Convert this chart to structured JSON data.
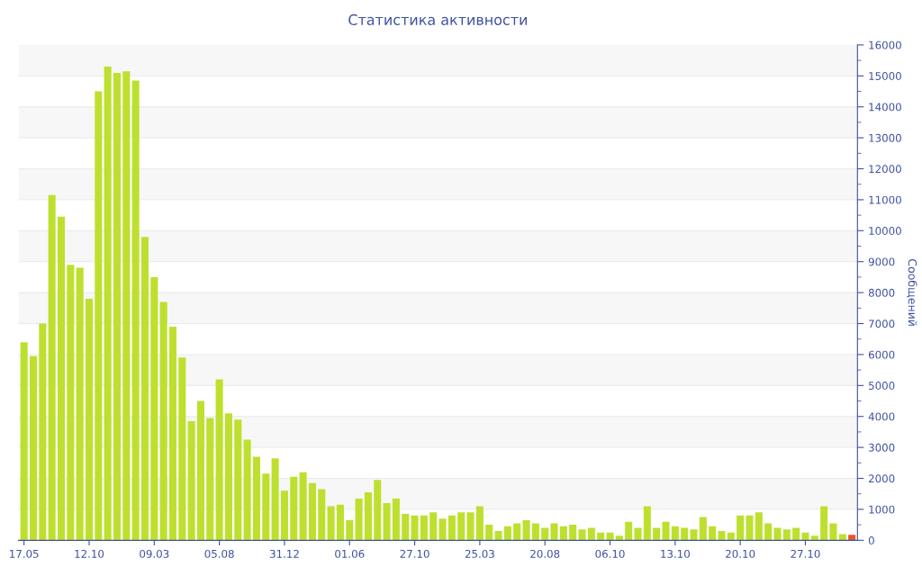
{
  "chart_data": {
    "type": "bar",
    "title": "Статистика активности",
    "ylabel": "Сообщений",
    "categories": [
      "17.05",
      null,
      null,
      null,
      null,
      null,
      null,
      "12.10",
      null,
      null,
      null,
      null,
      null,
      null,
      "09.03",
      null,
      null,
      null,
      null,
      null,
      null,
      "05.08",
      null,
      null,
      null,
      null,
      null,
      null,
      "31.12",
      null,
      null,
      null,
      null,
      null,
      null,
      "01.06",
      null,
      null,
      null,
      null,
      null,
      null,
      "27.10",
      null,
      null,
      null,
      null,
      null,
      null,
      "25.03",
      null,
      null,
      null,
      null,
      null,
      null,
      "20.08",
      null,
      null,
      null,
      null,
      null,
      null,
      "06.10",
      null,
      null,
      null,
      null,
      null,
      null,
      "13.10",
      null,
      null,
      null,
      null,
      null,
      null,
      "20.10",
      null,
      null,
      null,
      null,
      null,
      null,
      "27.10",
      null,
      null,
      null,
      null,
      null
    ],
    "values": [
      6400,
      5950,
      7000,
      11150,
      10450,
      8900,
      8800,
      7800,
      14500,
      15300,
      15100,
      15150,
      14850,
      9800,
      8500,
      7700,
      6900,
      5900,
      3850,
      4500,
      3950,
      5200,
      4100,
      3900,
      3250,
      2700,
      2150,
      2650,
      1600,
      2050,
      2200,
      1850,
      1650,
      1100,
      1150,
      650,
      1350,
      1550,
      1950,
      1200,
      1350,
      850,
      800,
      800,
      900,
      700,
      800,
      900,
      900,
      1100,
      500,
      300,
      450,
      550,
      650,
      550,
      400,
      550,
      450,
      500,
      350,
      400,
      250,
      250,
      150,
      600,
      400,
      1100,
      400,
      600,
      450,
      400,
      350,
      750,
      450,
      300,
      250,
      800,
      800,
      900,
      550,
      400,
      350,
      400,
      250,
      150,
      1100,
      550,
      200,
      180
    ],
    "colors": [
      "#bde02f",
      "#bde02f",
      "#bde02f",
      "#bde02f",
      "#bde02f",
      "#bde02f",
      "#bde02f",
      "#bde02f",
      "#bde02f",
      "#bde02f",
      "#bde02f",
      "#bde02f",
      "#bde02f",
      "#bde02f",
      "#bde02f",
      "#bde02f",
      "#bde02f",
      "#bde02f",
      "#bde02f",
      "#bde02f",
      "#bde02f",
      "#bde02f",
      "#bde02f",
      "#bde02f",
      "#bde02f",
      "#bde02f",
      "#bde02f",
      "#bde02f",
      "#bde02f",
      "#bde02f",
      "#bde02f",
      "#bde02f",
      "#bde02f",
      "#bde02f",
      "#bde02f",
      "#bde02f",
      "#bde02f",
      "#bde02f",
      "#bde02f",
      "#bde02f",
      "#bde02f",
      "#bde02f",
      "#bde02f",
      "#bde02f",
      "#bde02f",
      "#bde02f",
      "#bde02f",
      "#bde02f",
      "#bde02f",
      "#bde02f",
      "#bde02f",
      "#bde02f",
      "#bde02f",
      "#bde02f",
      "#bde02f",
      "#bde02f",
      "#bde02f",
      "#bde02f",
      "#bde02f",
      "#bde02f",
      "#bde02f",
      "#bde02f",
      "#bde02f",
      "#bde02f",
      "#bde02f",
      "#bde02f",
      "#bde02f",
      "#bde02f",
      "#bde02f",
      "#bde02f",
      "#bde02f",
      "#bde02f",
      "#bde02f",
      "#bde02f",
      "#bde02f",
      "#bde02f",
      "#bde02f",
      "#bde02f",
      "#bde02f",
      "#bde02f",
      "#bde02f",
      "#bde02f",
      "#bde02f",
      "#bde02f",
      "#bde02f",
      "#bde02f",
      "#bde02f",
      "#bde02f",
      "#bde02f",
      "#e8572a"
    ],
    "ylim": [
      0,
      16000
    ],
    "yticks": [
      0,
      1000,
      2000,
      3000,
      4000,
      5000,
      6000,
      7000,
      8000,
      9000,
      10000,
      11000,
      12000,
      13000,
      14000,
      15000,
      16000
    ],
    "grid": "y"
  }
}
